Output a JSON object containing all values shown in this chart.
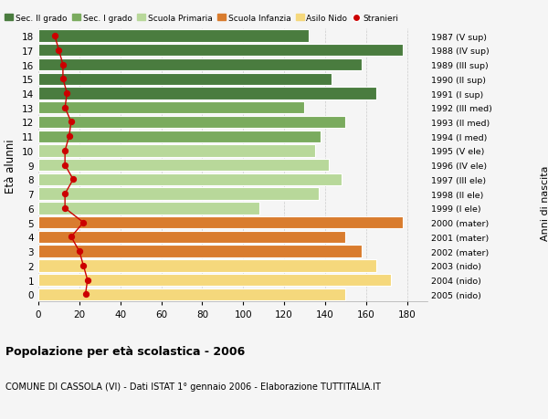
{
  "ages": [
    18,
    17,
    16,
    15,
    14,
    13,
    12,
    11,
    10,
    9,
    8,
    7,
    6,
    5,
    4,
    3,
    2,
    1,
    0
  ],
  "right_labels": [
    "1987 (V sup)",
    "1988 (IV sup)",
    "1989 (III sup)",
    "1990 (II sup)",
    "1991 (I sup)",
    "1992 (III med)",
    "1993 (II med)",
    "1994 (I med)",
    "1995 (V ele)",
    "1996 (IV ele)",
    "1997 (III ele)",
    "1998 (II ele)",
    "1999 (I ele)",
    "2000 (mater)",
    "2001 (mater)",
    "2002 (mater)",
    "2003 (nido)",
    "2004 (nido)",
    "2005 (nido)"
  ],
  "bar_values": [
    132,
    178,
    158,
    143,
    165,
    130,
    150,
    138,
    135,
    142,
    148,
    137,
    108,
    178,
    150,
    158,
    165,
    172,
    150
  ],
  "bar_colors": [
    "#4a7c3f",
    "#4a7c3f",
    "#4a7c3f",
    "#4a7c3f",
    "#4a7c3f",
    "#7aab5e",
    "#7aab5e",
    "#7aab5e",
    "#b8d89a",
    "#b8d89a",
    "#b8d89a",
    "#b8d89a",
    "#b8d89a",
    "#d97c2e",
    "#d97c2e",
    "#d97c2e",
    "#f5d87c",
    "#f5d87c",
    "#f5d87c"
  ],
  "stranieri_values": [
    8,
    10,
    12,
    12,
    14,
    13,
    16,
    15,
    13,
    13,
    17,
    13,
    13,
    22,
    16,
    20,
    22,
    24,
    23
  ],
  "title_bold": "Popolazione per età scolastica - 2006",
  "subtitle": "COMUNE DI CASSOLA (VI) - Dati ISTAT 1° gennaio 2006 - Elaborazione TUTTITALIA.IT",
  "ylabel": "Età alunni",
  "right_ylabel": "Anni di nascita",
  "xlim": [
    0,
    190
  ],
  "xticks": [
    0,
    20,
    40,
    60,
    80,
    100,
    120,
    140,
    160,
    180
  ],
  "legend_labels": [
    "Sec. II grado",
    "Sec. I grado",
    "Scuola Primaria",
    "Scuola Infanzia",
    "Asilo Nido",
    "Stranieri"
  ],
  "legend_colors": [
    "#4a7c3f",
    "#7aab5e",
    "#b8d89a",
    "#d97c2e",
    "#f5d87c",
    "#cc0000"
  ],
  "bar_height": 0.85,
  "bg_color": "#f5f5f5",
  "grid_color": "#cccccc",
  "line_color": "#cc0000",
  "dot_color": "#cc0000"
}
